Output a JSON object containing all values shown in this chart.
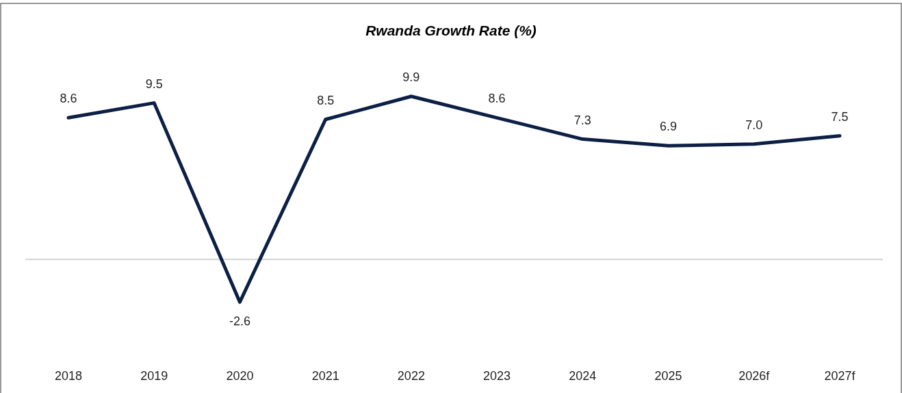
{
  "chart_data": {
    "type": "line",
    "title": "Rwanda Growth Rate (%)",
    "categories": [
      "2018",
      "2019",
      "2020",
      "2021",
      "2022",
      "2023",
      "2024",
      "2025",
      "2026f",
      "2027f"
    ],
    "series": [
      {
        "color": "#0c1f45",
        "values": [
          8.6,
          9.5,
          -2.6,
          8.5,
          9.9,
          8.6,
          7.3,
          6.9,
          7.0,
          7.5
        ],
        "value_labels": [
          "8.6",
          "9.5",
          "-2.6",
          "8.5",
          "9.9",
          "8.6",
          "7.3",
          "6.9",
          "7.0",
          "7.5"
        ]
      }
    ],
    "line_style": "solid"
  }
}
